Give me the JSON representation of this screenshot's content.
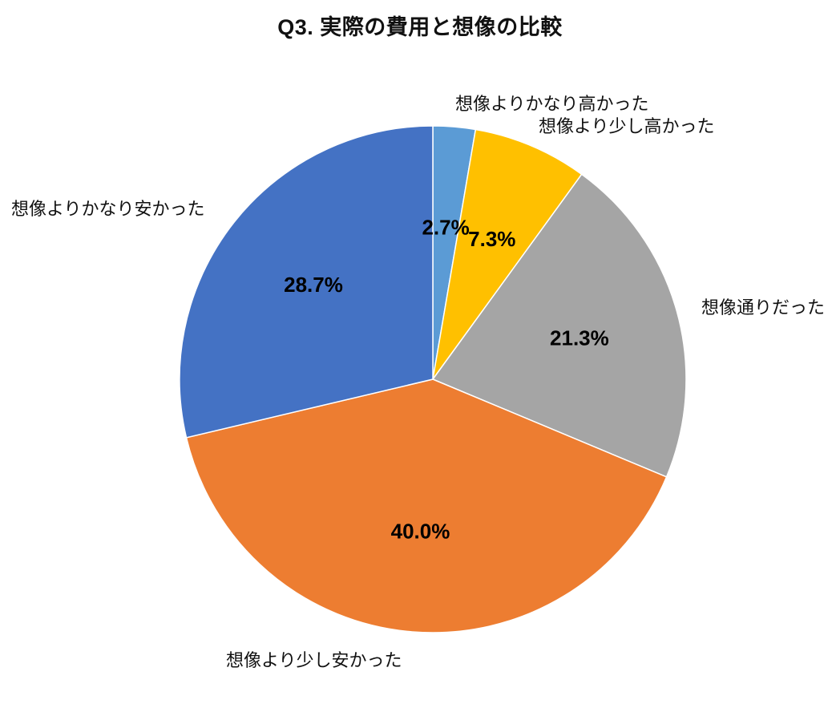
{
  "title": "Q3. 実際の費用と想像の比較",
  "chart_data": {
    "type": "pie",
    "title": "Q3. 実際の費用と想像の比較",
    "start_angle_deg": 0,
    "direction": "clockwise",
    "legend": "none",
    "labels_outside": true,
    "slices": [
      {
        "label": "想像よりかなり高かった",
        "value": 2.7,
        "percent_label": "2.7%",
        "color": "#5B9BD5"
      },
      {
        "label": "想像より少し高かった",
        "value": 7.3,
        "percent_label": "7.3%",
        "color": "#FFC000"
      },
      {
        "label": "想像通りだった",
        "value": 21.3,
        "percent_label": "21.3%",
        "color": "#A5A5A5"
      },
      {
        "label": "想像より少し安かった",
        "value": 40.0,
        "percent_label": "40.0%",
        "color": "#ED7D31"
      },
      {
        "label": "想像よりかなり安かった",
        "value": 28.7,
        "percent_label": "28.7%",
        "color": "#4472C4"
      }
    ]
  }
}
